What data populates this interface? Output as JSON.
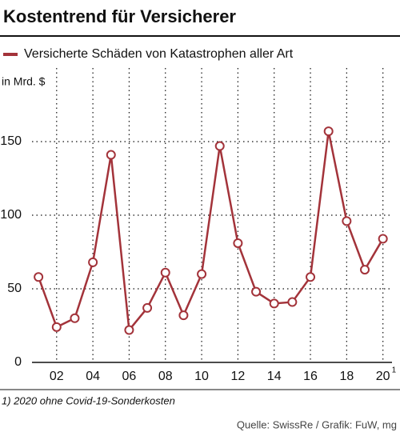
{
  "chart_data": {
    "type": "line",
    "title": "Kostentrend für Versicherer",
    "y_axis_label": "in Mrd. $",
    "x": [
      2001,
      2002,
      2003,
      2004,
      2005,
      2006,
      2007,
      2008,
      2009,
      2010,
      2011,
      2012,
      2013,
      2014,
      2015,
      2016,
      2017,
      2018,
      2019,
      2020
    ],
    "series": [
      {
        "name": "Versicherte Schäden von Katastrophen aller Art",
        "color": "#a3333a",
        "values": [
          58,
          24,
          30,
          68,
          141,
          22,
          37,
          61,
          32,
          60,
          147,
          81,
          48,
          40,
          41,
          58,
          157,
          96,
          63,
          84
        ]
      }
    ],
    "xlim": [
      2000.2,
      2020.5
    ],
    "xticks": [
      {
        "value": 2002,
        "label": "02"
      },
      {
        "value": 2004,
        "label": "04"
      },
      {
        "value": 2006,
        "label": "06"
      },
      {
        "value": 2008,
        "label": "08"
      },
      {
        "value": 2010,
        "label": "10"
      },
      {
        "value": 2012,
        "label": "12"
      },
      {
        "value": 2014,
        "label": "14"
      },
      {
        "value": 2016,
        "label": "16"
      },
      {
        "value": 2018,
        "label": "18"
      },
      {
        "value": 2020,
        "label": "20"
      }
    ],
    "footnote_mark": "1",
    "ylim": [
      0,
      200
    ],
    "yticks": [
      0,
      50,
      100,
      150
    ],
    "grid": true,
    "footnote": "1) 2020 ohne Covid-19-Sonderkosten",
    "source": "Quelle: SwissRe / Grafik: FuW, mg"
  }
}
